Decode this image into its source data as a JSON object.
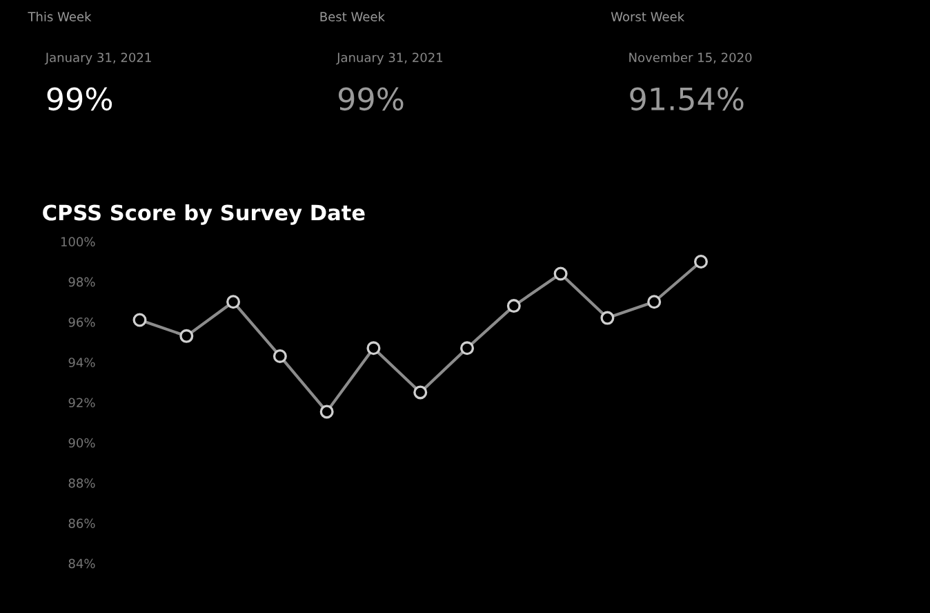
{
  "chart_data": [
    {
      "type": "other",
      "annotations": [
        "This Week",
        "Best Week",
        "Worst Week",
        "January 31, 2021",
        "January 31, 2021",
        "November 15, 2020",
        "99%",
        "99%",
        "91.54%"
      ]
    },
    {
      "type": "line",
      "title": "CPSS Score by Survey Date",
      "categories": [
        null,
        null,
        null,
        null,
        null,
        null,
        null,
        null,
        null,
        null,
        null,
        null,
        null
      ],
      "series": [
        {
          "color": "#8c8c8c",
          "values": [
            96.1,
            95.3,
            97.0,
            94.3,
            91.54,
            94.7,
            92.5,
            94.7,
            96.8,
            98.4,
            96.2,
            97.0,
            99.0
          ]
        }
      ],
      "ylim": [
        84,
        100
      ],
      "yticks": [
        {
          "value": 84,
          "label": "84%"
        },
        {
          "value": 86,
          "label": "86%"
        },
        {
          "value": 88,
          "label": "88%"
        },
        {
          "value": 90,
          "label": "90%"
        },
        {
          "value": 92,
          "label": "92%"
        },
        {
          "value": 94,
          "label": "94%"
        },
        {
          "value": 96,
          "label": "96%"
        },
        {
          "value": 98,
          "label": "98%"
        },
        {
          "value": 100,
          "label": "100%"
        }
      ],
      "tick_labels": "y",
      "marker": "circle",
      "line_style": "solid",
      "grid": false,
      "legend": false
    }
  ]
}
